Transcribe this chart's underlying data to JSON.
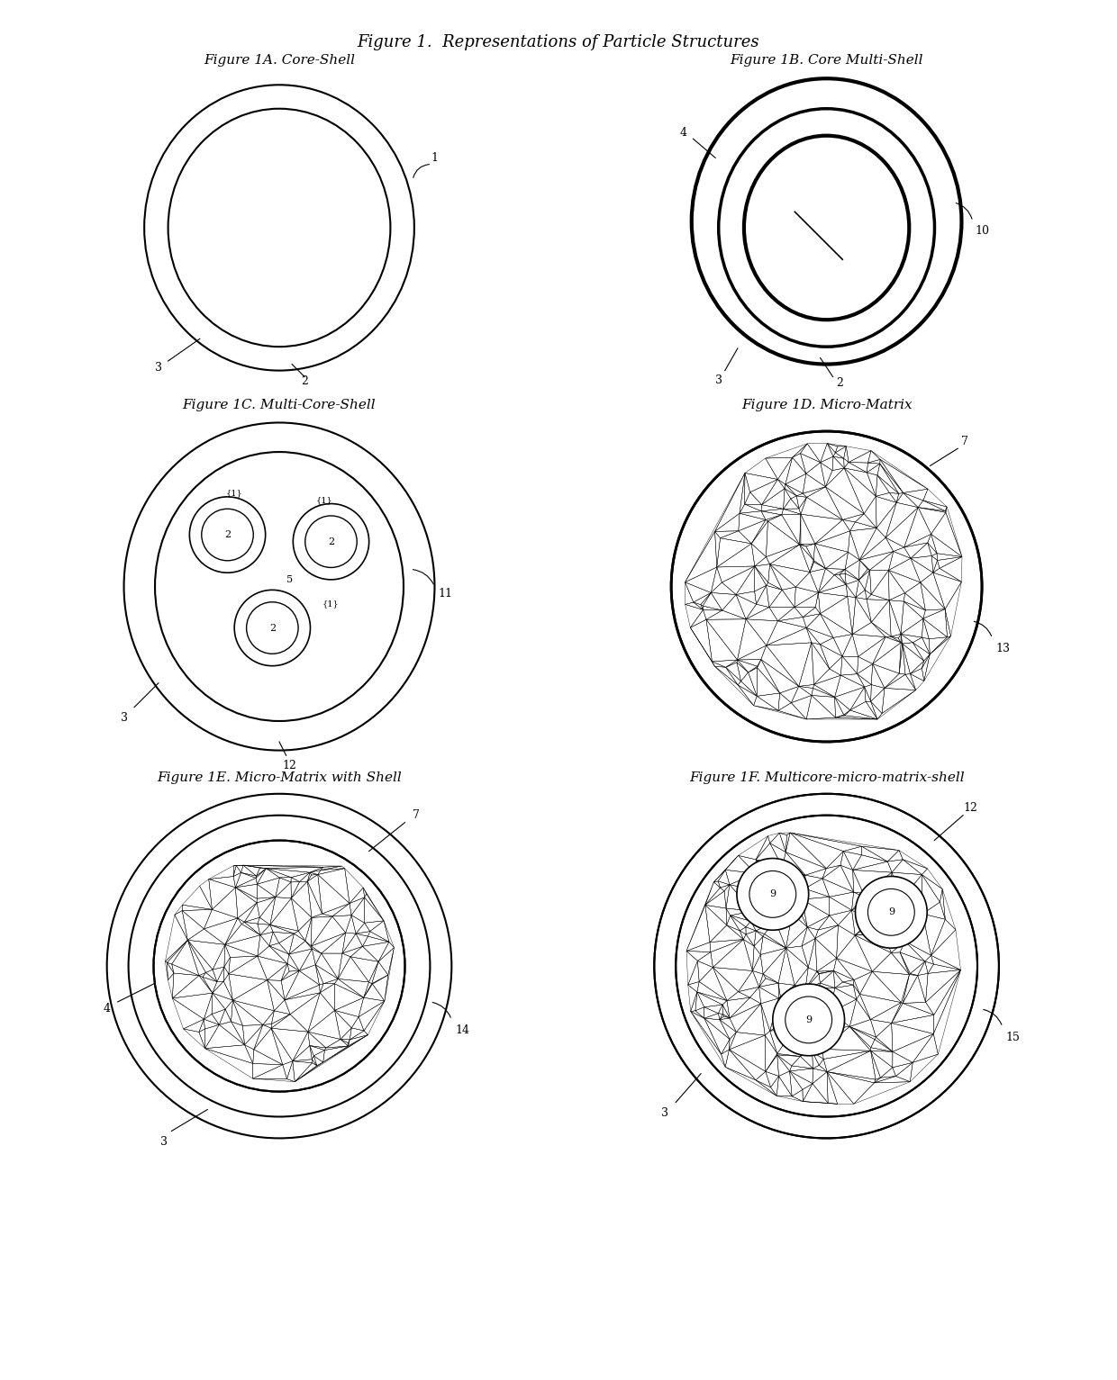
{
  "title": "Figure 1.  Representations of Particle Structures",
  "fig_1A_title": "Figure 1A. Core-Shell",
  "fig_1B_title": "Figure 1B. Core Multi-Shell",
  "fig_1C_title": "Figure 1C. Multi-Core-Shell",
  "fig_1D_title": "Figure 1D. Micro-Matrix",
  "fig_1E_title": "Figure 1E. Micro-Matrix with Shell",
  "fig_1F_title": "Figure 1F. Multicore-micro-matrix-shell",
  "bg_color": "#ffffff",
  "line_color": "#000000",
  "title_fontsize": 13,
  "subfig_title_fontsize": 11
}
